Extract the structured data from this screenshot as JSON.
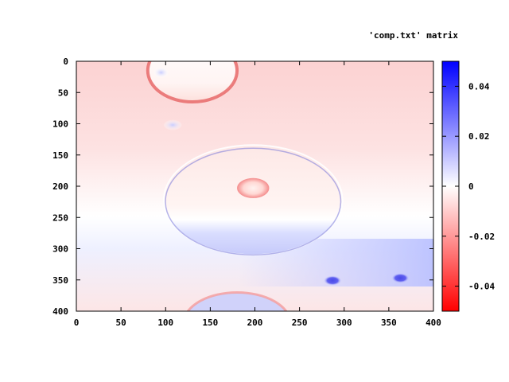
{
  "chart_data": {
    "type": "heatmap",
    "title": "'comp.txt' matrix",
    "xlabel": "",
    "ylabel": "",
    "xlim": [
      0,
      400
    ],
    "ylim": [
      400,
      0
    ],
    "x_ticks": [
      "0",
      "50",
      "100",
      "150",
      "200",
      "250",
      "300",
      "350",
      "400"
    ],
    "y_ticks": [
      "0",
      "50",
      "100",
      "150",
      "200",
      "250",
      "300",
      "350",
      "400"
    ],
    "colorbar": {
      "range": [
        -0.05,
        0.05
      ],
      "ticks": [
        "0.04",
        "0.02",
        "0",
        "-0.02",
        "-0.04"
      ],
      "tick_values": [
        0.04,
        0.02,
        0,
        -0.02,
        -0.04
      ],
      "colors": {
        "negative": "#ff0000",
        "zero": "#ffffff",
        "positive": "#0000ff"
      }
    },
    "features": [
      {
        "shape": "ellipse-ring",
        "cx": 130,
        "cy": 15,
        "rx": 50,
        "ry": 50,
        "value": -0.025
      },
      {
        "shape": "blob",
        "cx": 95,
        "cy": 18,
        "rx": 8,
        "ry": 8,
        "value": 0.01
      },
      {
        "shape": "blob",
        "cx": 108,
        "cy": 102,
        "rx": 10,
        "ry": 8,
        "value": 0.015
      },
      {
        "shape": "ellipse-ring",
        "cx": 198,
        "cy": 222,
        "rx": 100,
        "ry": 88,
        "value": 0.01
      },
      {
        "shape": "blob",
        "cx": 198,
        "cy": 203,
        "rx": 18,
        "ry": 16,
        "value": -0.02
      },
      {
        "shape": "blob",
        "cx": 287,
        "cy": 351,
        "rx": 10,
        "ry": 8,
        "value": 0.035
      },
      {
        "shape": "blob",
        "cx": 363,
        "cy": 347,
        "rx": 10,
        "ry": 8,
        "value": 0.035
      },
      {
        "shape": "ellipse-ring",
        "cx": 180,
        "cy": 420,
        "rx": 60,
        "ry": 50,
        "value": 0.012
      }
    ]
  }
}
